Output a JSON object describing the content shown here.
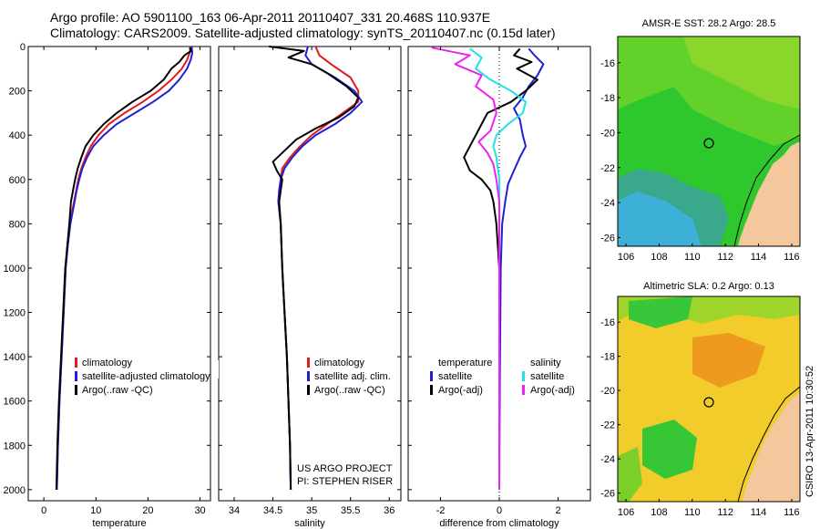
{
  "header": {
    "line1": "Argo profile: AO 5901100_163 06-Apr-2011 20110407_331 20.468S 110.937E",
    "line2": "Climatology: CARS2009. Satellite-adjusted climatology: synTS_20110407.nc (0.15d later)"
  },
  "credit": "CSIRO 13-Apr-2011 10:30:52",
  "project_note": [
    "US ARGO PROJECT",
    "PI: STEPHEN RISER"
  ],
  "colors": {
    "red": "#e31a1c",
    "blue": "#1f1fd6",
    "black": "#000000",
    "cyan": "#20e0e8",
    "magenta": "#ee22ee"
  },
  "chart_data": [
    {
      "type": "line",
      "id": "temperature",
      "xlabel": "temperature",
      "ylabel": "",
      "xlim": [
        -3,
        32
      ],
      "ylim": [
        2050,
        0
      ],
      "xticks": [
        0,
        10,
        20,
        30
      ],
      "yticks": [
        0,
        200,
        400,
        600,
        800,
        1000,
        1200,
        1400,
        1600,
        1800,
        2000
      ],
      "legend": [
        "climatology",
        "satellite-adjusted climatology",
        "Argo(..raw -QC)"
      ],
      "series": [
        {
          "name": "climatology",
          "color": "red",
          "points": [
            [
              28.2,
              0
            ],
            [
              28.0,
              30
            ],
            [
              27.5,
              60
            ],
            [
              26.5,
              100
            ],
            [
              24.5,
              150
            ],
            [
              22.0,
              200
            ],
            [
              19.0,
              250
            ],
            [
              15.5,
              300
            ],
            [
              12.5,
              350
            ],
            [
              10.5,
              400
            ],
            [
              9.0,
              450
            ],
            [
              8.0,
              500
            ],
            [
              7.2,
              550
            ],
            [
              6.6,
              600
            ],
            [
              6.2,
              650
            ],
            [
              5.8,
              700
            ],
            [
              5.4,
              750
            ],
            [
              5.0,
              800
            ],
            [
              4.5,
              900
            ],
            [
              4.2,
              1000
            ],
            [
              3.8,
              1200
            ],
            [
              3.4,
              1400
            ],
            [
              3.0,
              1600
            ],
            [
              2.7,
              1800
            ],
            [
              2.5,
              2000
            ]
          ]
        },
        {
          "name": "satellite-adjusted climatology",
          "color": "blue",
          "points": [
            [
              28.4,
              0
            ],
            [
              28.5,
              30
            ],
            [
              28.2,
              60
            ],
            [
              27.5,
              100
            ],
            [
              26.0,
              150
            ],
            [
              24.0,
              200
            ],
            [
              21.0,
              250
            ],
            [
              17.5,
              300
            ],
            [
              14.0,
              350
            ],
            [
              11.5,
              400
            ],
            [
              9.5,
              450
            ],
            [
              8.3,
              500
            ],
            [
              7.4,
              550
            ],
            [
              6.8,
              600
            ],
            [
              6.3,
              650
            ],
            [
              5.9,
              700
            ],
            [
              5.5,
              750
            ],
            [
              5.1,
              800
            ],
            [
              4.6,
              900
            ],
            [
              4.2,
              1000
            ],
            [
              3.8,
              1200
            ],
            [
              3.4,
              1400
            ],
            [
              3.0,
              1600
            ],
            [
              2.7,
              1800
            ],
            [
              2.5,
              2000
            ]
          ]
        },
        {
          "name": "Argo(..raw -QC)",
          "color": "black",
          "points": [
            [
              28.0,
              5
            ],
            [
              28.3,
              20
            ],
            [
              27.0,
              40
            ],
            [
              26.0,
              70
            ],
            [
              24.5,
              100
            ],
            [
              23.0,
              150
            ],
            [
              20.5,
              200
            ],
            [
              17.0,
              250
            ],
            [
              14.0,
              300
            ],
            [
              11.5,
              350
            ],
            [
              9.5,
              400
            ],
            [
              8.0,
              450
            ],
            [
              7.2,
              500
            ],
            [
              6.5,
              550
            ],
            [
              6.0,
              600
            ],
            [
              5.6,
              650
            ],
            [
              5.2,
              700
            ],
            [
              4.9,
              800
            ],
            [
              4.5,
              900
            ],
            [
              4.1,
              1000
            ],
            [
              3.7,
              1200
            ],
            [
              3.3,
              1400
            ],
            [
              2.9,
              1600
            ],
            [
              2.6,
              1800
            ],
            [
              2.4,
              2000
            ]
          ]
        }
      ]
    },
    {
      "type": "line",
      "id": "salinity",
      "xlabel": "salinity",
      "ylabel": "",
      "xlim": [
        33.8,
        36.15
      ],
      "ylim": [
        2050,
        0
      ],
      "xticks": [
        34,
        34.5,
        35,
        35.5,
        36
      ],
      "xtick_labels": [
        "34",
        "34.5",
        "35",
        "35.5",
        "36"
      ],
      "legend": [
        "climatology",
        "satellite adj. clim.",
        "Argo(..raw -QC)"
      ],
      "series": [
        {
          "name": "climatology",
          "color": "red",
          "points": [
            [
              35.05,
              0
            ],
            [
              35.1,
              40
            ],
            [
              35.25,
              80
            ],
            [
              35.5,
              140
            ],
            [
              35.6,
              200
            ],
            [
              35.6,
              250
            ],
            [
              35.4,
              300
            ],
            [
              35.2,
              350
            ],
            [
              35.0,
              400
            ],
            [
              34.85,
              450
            ],
            [
              34.72,
              500
            ],
            [
              34.62,
              550
            ],
            [
              34.6,
              600
            ],
            [
              34.58,
              650
            ],
            [
              34.57,
              700
            ],
            [
              34.6,
              800
            ],
            [
              34.62,
              1000
            ],
            [
              34.65,
              1200
            ],
            [
              34.68,
              1400
            ],
            [
              34.7,
              1600
            ],
            [
              34.72,
              1800
            ],
            [
              34.73,
              2000
            ]
          ]
        },
        {
          "name": "satellite adj. clim.",
          "color": "blue",
          "points": [
            [
              34.95,
              0
            ],
            [
              34.92,
              40
            ],
            [
              35.0,
              80
            ],
            [
              35.3,
              140
            ],
            [
              35.55,
              200
            ],
            [
              35.65,
              250
            ],
            [
              35.5,
              300
            ],
            [
              35.3,
              350
            ],
            [
              35.05,
              400
            ],
            [
              34.88,
              450
            ],
            [
              34.75,
              500
            ],
            [
              34.65,
              550
            ],
            [
              34.6,
              600
            ],
            [
              34.58,
              650
            ],
            [
              34.57,
              700
            ],
            [
              34.6,
              800
            ],
            [
              34.62,
              1000
            ],
            [
              34.65,
              1200
            ],
            [
              34.68,
              1400
            ],
            [
              34.7,
              1600
            ],
            [
              34.72,
              1800
            ],
            [
              34.73,
              2000
            ]
          ]
        },
        {
          "name": "Argo(..raw -QC)",
          "color": "black",
          "points": [
            [
              34.45,
              0
            ],
            [
              34.9,
              20
            ],
            [
              34.7,
              50
            ],
            [
              35.0,
              80
            ],
            [
              35.2,
              120
            ],
            [
              35.45,
              180
            ],
            [
              35.6,
              230
            ],
            [
              35.55,
              270
            ],
            [
              35.35,
              320
            ],
            [
              35.05,
              370
            ],
            [
              34.8,
              420
            ],
            [
              34.65,
              470
            ],
            [
              34.5,
              520
            ],
            [
              34.55,
              560
            ],
            [
              34.62,
              600
            ],
            [
              34.6,
              650
            ],
            [
              34.58,
              700
            ],
            [
              34.6,
              800
            ],
            [
              34.62,
              1000
            ],
            [
              34.65,
              1200
            ],
            [
              34.68,
              1400
            ],
            [
              34.7,
              1600
            ],
            [
              34.72,
              1800
            ],
            [
              34.73,
              2000
            ]
          ]
        }
      ]
    },
    {
      "type": "line",
      "id": "difference",
      "xlabel": "difference from climatology",
      "ylabel": "",
      "xlim": [
        -3.1,
        3.1
      ],
      "ylim": [
        2050,
        0
      ],
      "xticks": [
        -2,
        0,
        2
      ],
      "legend_title": [
        "temperature",
        "salinity"
      ],
      "legend": [
        "satellite",
        "Argo(-adj)",
        "satellite",
        "Argo(-adj)"
      ],
      "series": [
        {
          "name": "temperature satellite",
          "color": "blue",
          "points": [
            [
              1.0,
              10
            ],
            [
              1.2,
              40
            ],
            [
              1.5,
              80
            ],
            [
              1.3,
              130
            ],
            [
              1.0,
              180
            ],
            [
              0.8,
              230
            ],
            [
              0.5,
              280
            ],
            [
              0.7,
              330
            ],
            [
              0.8,
              400
            ],
            [
              0.9,
              450
            ],
            [
              0.7,
              500
            ],
            [
              0.5,
              560
            ],
            [
              0.3,
              620
            ],
            [
              0.2,
              700
            ],
            [
              0.1,
              800
            ],
            [
              0.05,
              1000
            ],
            [
              0.02,
              1500
            ],
            [
              0.0,
              2000
            ]
          ]
        },
        {
          "name": "temperature Argo(-adj)",
          "color": "black",
          "points": [
            [
              0.7,
              10
            ],
            [
              0.5,
              40
            ],
            [
              1.1,
              70
            ],
            [
              0.6,
              100
            ],
            [
              1.3,
              150
            ],
            [
              0.9,
              200
            ],
            [
              0.4,
              250
            ],
            [
              -0.4,
              300
            ],
            [
              -0.6,
              350
            ],
            [
              -0.8,
              400
            ],
            [
              -1.0,
              450
            ],
            [
              -1.2,
              500
            ],
            [
              -1.0,
              560
            ],
            [
              -0.6,
              600
            ],
            [
              -0.3,
              650
            ],
            [
              -0.2,
              700
            ],
            [
              -0.1,
              800
            ],
            [
              0.0,
              1000
            ],
            [
              0.0,
              2000
            ]
          ]
        },
        {
          "name": "salinity satellite",
          "color": "cyan",
          "points": [
            [
              -1.0,
              10
            ],
            [
              -0.6,
              50
            ],
            [
              -0.8,
              100
            ],
            [
              -0.3,
              150
            ],
            [
              0.4,
              200
            ],
            [
              0.9,
              250
            ],
            [
              0.8,
              300
            ],
            [
              0.3,
              350
            ],
            [
              -0.1,
              400
            ],
            [
              -0.2,
              450
            ],
            [
              -0.1,
              500
            ],
            [
              0.0,
              600
            ],
            [
              0.0,
              800
            ],
            [
              0.0,
              2000
            ]
          ]
        },
        {
          "name": "salinity Argo(-adj)",
          "color": "magenta",
          "points": [
            [
              -2.3,
              5
            ],
            [
              -1.0,
              40
            ],
            [
              -1.5,
              80
            ],
            [
              -0.6,
              130
            ],
            [
              -0.8,
              180
            ],
            [
              -0.2,
              240
            ],
            [
              -0.1,
              300
            ],
            [
              -0.3,
              380
            ],
            [
              -0.7,
              430
            ],
            [
              -0.4,
              480
            ],
            [
              -0.2,
              530
            ],
            [
              -0.1,
              600
            ],
            [
              0.0,
              700
            ],
            [
              0.0,
              2000
            ]
          ]
        }
      ]
    },
    {
      "type": "heatmap",
      "id": "sst",
      "title": "AMSR-E SST: 28.2 Argo: 28.5",
      "xlim": [
        105.5,
        116.5
      ],
      "ylim": [
        -26.5,
        -14.5
      ],
      "xticks": [
        106,
        108,
        110,
        112,
        114,
        116
      ],
      "yticks": [
        -16,
        -18,
        -20,
        -22,
        -24,
        -26
      ],
      "marker": [
        110.94,
        -20.47
      ]
    },
    {
      "type": "heatmap",
      "id": "sla",
      "title": "Altimetric SLA: 0.2 Argo: 0.13",
      "xlim": [
        105.5,
        116.5
      ],
      "ylim": [
        -26.5,
        -14.5
      ],
      "xticks": [
        106,
        108,
        110,
        112,
        114,
        116
      ],
      "yticks": [
        -16,
        -18,
        -20,
        -22,
        -24,
        -26
      ],
      "marker": [
        110.94,
        -20.47
      ]
    }
  ]
}
